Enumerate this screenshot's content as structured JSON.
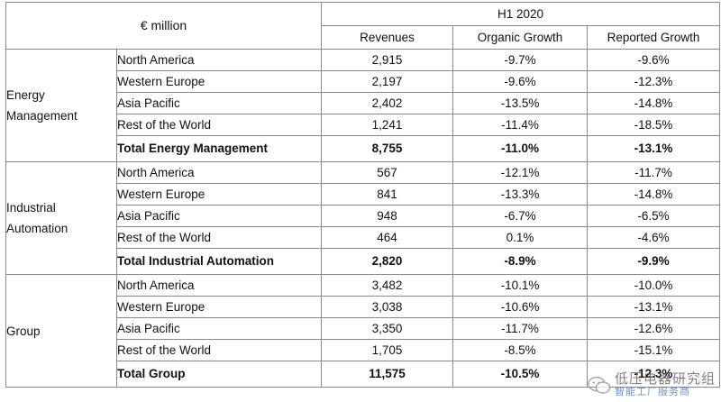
{
  "header": {
    "unit": "€ million",
    "period": "H1 2020",
    "columns": [
      "Revenues",
      "Organic Growth",
      "Reported Growth"
    ]
  },
  "segments": [
    {
      "name": "Energy Management",
      "rows": [
        {
          "region": "North America",
          "revenues": "2,915",
          "organic": "-9.7%",
          "reported": "-9.6%"
        },
        {
          "region": "Western Europe",
          "revenues": "2,197",
          "organic": "-9.6%",
          "reported": "-12.3%"
        },
        {
          "region": "Asia Pacific",
          "revenues": "2,402",
          "organic": "-13.5%",
          "reported": "-14.8%"
        },
        {
          "region": "Rest of the World",
          "revenues": "1,241",
          "organic": "-11.4%",
          "reported": "-18.5%"
        }
      ],
      "total": {
        "label": "Total Energy Management",
        "revenues": "8,755",
        "organic": "-11.0%",
        "reported": "-13.1%"
      }
    },
    {
      "name": "Industrial Automation",
      "rows": [
        {
          "region": "North America",
          "revenues": "567",
          "organic": "-12.1%",
          "reported": "-11.7%"
        },
        {
          "region": "Western Europe",
          "revenues": "841",
          "organic": "-13.3%",
          "reported": "-14.8%"
        },
        {
          "region": "Asia Pacific",
          "revenues": "948",
          "organic": "-6.7%",
          "reported": "-6.5%"
        },
        {
          "region": "Rest of the World",
          "revenues": "464",
          "organic": "0.1%",
          "reported": "-4.6%"
        }
      ],
      "total": {
        "label": "Total Industrial Automation",
        "revenues": "2,820",
        "organic": "-8.9%",
        "reported": "-9.9%"
      }
    },
    {
      "name": "Group",
      "rows": [
        {
          "region": "North America",
          "revenues": "3,482",
          "organic": "-10.1%",
          "reported": "-10.0%"
        },
        {
          "region": "Western Europe",
          "revenues": "3,038",
          "organic": "-10.6%",
          "reported": "-13.1%"
        },
        {
          "region": "Asia Pacific",
          "revenues": "3,350",
          "organic": "-11.7%",
          "reported": "-12.6%"
        },
        {
          "region": "Rest of the World",
          "revenues": "1,705",
          "organic": "-8.5%",
          "reported": "-15.1%"
        }
      ],
      "total": {
        "label": "Total Group",
        "revenues": "11,575",
        "organic": "-10.5%",
        "reported": "-12.3%"
      }
    }
  ],
  "watermark": {
    "main": "低压电器研究组",
    "sub": "智能工厂服务商",
    "icon": "wechat-icon"
  }
}
